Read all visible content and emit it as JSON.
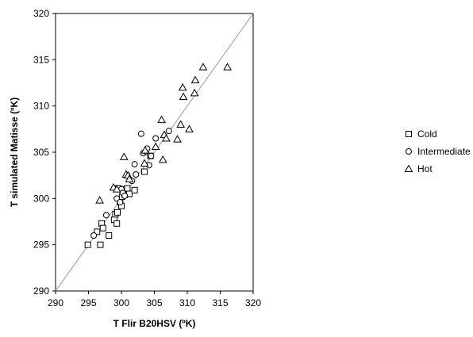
{
  "chart_data": {
    "type": "scatter",
    "title": "",
    "xlabel": "T Flir B20HSV (ºK)",
    "ylabel": "T simulated Matisse (ºK)",
    "xlim": [
      290,
      320
    ],
    "ylim": [
      290,
      320
    ],
    "xticks": [
      "290",
      "295",
      "300",
      "305",
      "310",
      "315",
      "320"
    ],
    "yticks": [
      "290",
      "295",
      "300",
      "305",
      "310",
      "315",
      "320"
    ],
    "grid": false,
    "legend_position": "right",
    "reference_line": {
      "type": "identity",
      "from": [
        290,
        290
      ],
      "to": [
        320,
        320
      ]
    },
    "series": [
      {
        "name": "Cold",
        "marker": "square",
        "x": [
          294.9,
          296.3,
          296.8,
          297.0,
          297.2,
          298.1,
          298.9,
          299.1,
          299.3,
          299.4,
          299.5,
          299.8,
          300.0,
          300.1,
          300.3,
          300.5,
          300.9,
          301.2,
          302.0,
          303.5,
          304.4
        ],
        "y": [
          295.0,
          296.4,
          295.0,
          297.3,
          296.8,
          296.0,
          297.7,
          298.3,
          297.3,
          298.5,
          301.1,
          299.6,
          299.2,
          300.2,
          301.0,
          300.4,
          301.1,
          300.5,
          300.9,
          302.9,
          304.6
        ]
      },
      {
        "name": "Intermediate",
        "marker": "circle",
        "x": [
          295.8,
          297.7,
          299.3,
          299.8,
          300.0,
          300.2,
          300.5,
          300.9,
          301.6,
          302.0,
          302.2,
          303.0,
          303.3,
          303.7,
          303.9,
          304.2,
          304.5,
          305.2,
          307.2
        ],
        "y": [
          296.0,
          298.2,
          300.0,
          299.6,
          301.0,
          300.6,
          300.3,
          302.5,
          301.9,
          303.7,
          302.6,
          307.0,
          304.9,
          305.1,
          305.4,
          303.6,
          304.6,
          306.5,
          307.3
        ],
        "y_note": ""
      },
      {
        "name": "Hot",
        "marker": "triangle",
        "x": [
          296.7,
          298.8,
          299.3,
          300.4,
          300.7,
          301.0,
          301.2,
          303.5,
          303.6,
          305.2,
          306.1,
          306.3,
          306.5,
          306.8,
          308.5,
          309.0,
          309.3,
          309.4,
          310.3,
          311.1,
          311.2,
          312.4,
          316.1
        ],
        "y": [
          299.8,
          301.2,
          301.0,
          304.5,
          302.6,
          302.5,
          302.1,
          303.8,
          305.2,
          305.6,
          308.5,
          304.2,
          306.9,
          306.5,
          306.4,
          308.0,
          312.0,
          311.0,
          307.5,
          311.4,
          312.8,
          314.2,
          314.2
        ]
      }
    ]
  }
}
